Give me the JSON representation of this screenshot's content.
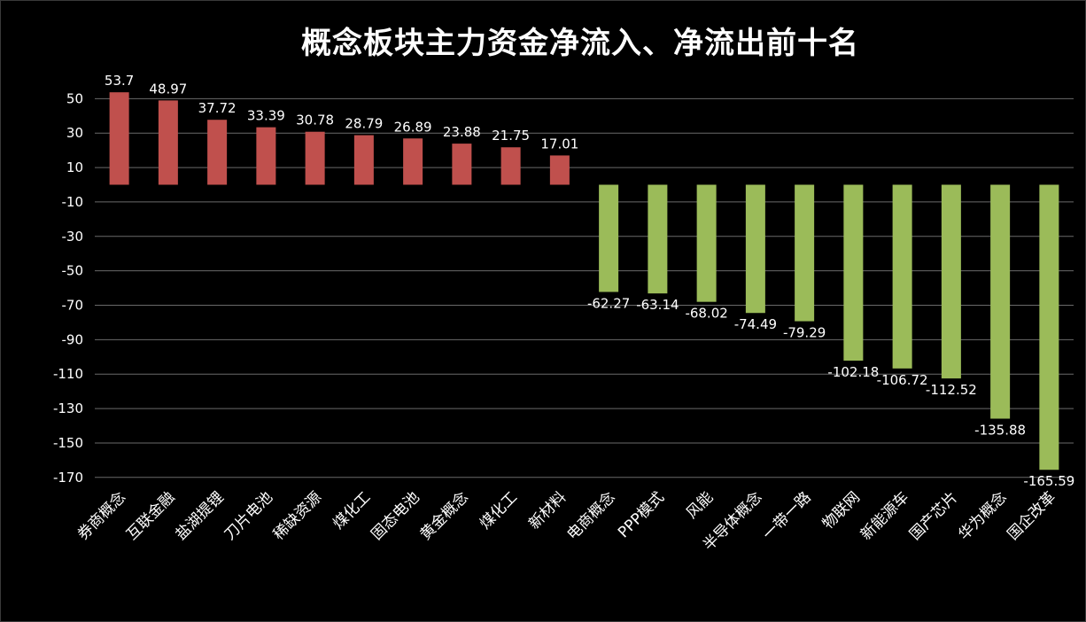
{
  "chart_data": {
    "type": "bar",
    "title": "概念板块主力资金净流入、净流出前十名",
    "categories": [
      "券商概念",
      "互联金融",
      "盐湖提锂",
      "刀片电池",
      "稀缺资源",
      "煤化工",
      "固态电池",
      "黄金概念",
      "煤化工",
      "新材料",
      "电商概念",
      "PPP模式",
      "风能",
      "半导体概念",
      "一带一路",
      "物联网",
      "新能源车",
      "国产芯片",
      "华为概念",
      "国企改革"
    ],
    "values": [
      53.7,
      48.97,
      37.72,
      33.39,
      30.78,
      28.79,
      26.89,
      23.88,
      21.75,
      17.01,
      -62.27,
      -63.14,
      -68.02,
      -74.49,
      -79.29,
      -102.18,
      -106.72,
      -112.52,
      -135.88,
      -165.59
    ],
    "value_labels": [
      "53.7",
      "48.97",
      "37.72",
      "33.39",
      "30.78",
      "28.79",
      "26.89",
      "23.88",
      "21.75",
      "17.01",
      "-62.27",
      "-63.14",
      "-68.02",
      "-74.49",
      "-79.29",
      "-102.18",
      "-106.72",
      "-112.52",
      "-135.88",
      "-165.59"
    ],
    "y_ticks": [
      50,
      30,
      10,
      -10,
      -30,
      -50,
      -70,
      -90,
      -110,
      -130,
      -150,
      -170
    ],
    "ylim": [
      -170,
      60
    ],
    "grid": true,
    "colors": {
      "positive": "#c0504d",
      "negative": "#9bbb59",
      "background": "#000000",
      "text": "#ffffff",
      "grid": "#6a6a6a"
    }
  }
}
